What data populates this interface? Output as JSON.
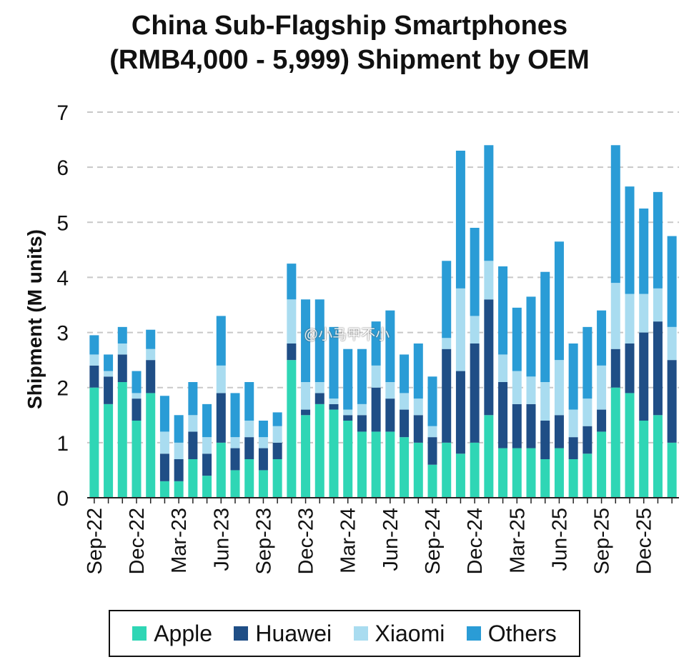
{
  "chart_data": {
    "type": "bar",
    "stacked": true,
    "title": "China Sub-Flagship Smartphones",
    "subtitle": "(RMB4,000 - 5,999) Shipment by OEM",
    "ylabel": "Shipment (M units)",
    "xlabel": "",
    "ylim": [
      0,
      7
    ],
    "yticks": [
      0,
      1,
      2,
      3,
      4,
      5,
      6,
      7
    ],
    "grid": true,
    "legend_position": "bottom",
    "categories": [
      "Sep-22",
      "Oct-22",
      "Nov-22",
      "Dec-22",
      "Jan-23",
      "Feb-23",
      "Mar-23",
      "Apr-23",
      "May-23",
      "Jun-23",
      "Jul-23",
      "Aug-23",
      "Sep-23",
      "Oct-23",
      "Nov-23",
      "Dec-23",
      "Jan-24",
      "Feb-24",
      "Mar-24",
      "Apr-24",
      "May-24",
      "Jun-24",
      "Jul-24",
      "Aug-24",
      "Sep-24",
      "Oct-24",
      "Nov-24",
      "Dec-24",
      "Jan-25",
      "Feb-25",
      "Mar-25",
      "Apr-25",
      "May-25",
      "Jun-25",
      "Jul-25",
      "Aug-25",
      "Sep-25",
      "Oct-25",
      "Nov-25",
      "Dec-25",
      "Jan-26",
      "Feb-26"
    ],
    "tick_labels": [
      "Sep-22",
      "Dec-22",
      "Mar-23",
      "Jun-23",
      "Sep-23",
      "Dec-23",
      "Mar-24",
      "Jun-24",
      "Sep-24",
      "Dec-24",
      "Mar-25",
      "Jun-25",
      "Sep-25",
      "Dec-25"
    ],
    "series": [
      {
        "name": "Apple",
        "color": "#2fd6b5",
        "values": [
          2.0,
          1.7,
          2.1,
          1.4,
          1.9,
          0.3,
          0.3,
          0.7,
          0.4,
          1.0,
          0.5,
          0.7,
          0.5,
          0.7,
          2.5,
          1.5,
          1.7,
          1.6,
          1.4,
          1.2,
          1.2,
          1.2,
          1.1,
          1.0,
          0.6,
          1.0,
          0.8,
          1.0,
          1.5,
          0.9,
          0.9,
          0.9,
          0.7,
          0.9,
          0.7,
          0.8,
          1.2,
          2.0,
          1.9,
          1.4,
          1.5,
          1.0
        ]
      },
      {
        "name": "Huawei",
        "color": "#1f4e86",
        "values": [
          0.4,
          0.5,
          0.5,
          0.4,
          0.6,
          0.5,
          0.4,
          0.5,
          0.4,
          0.9,
          0.4,
          0.4,
          0.4,
          0.3,
          0.3,
          0.1,
          0.2,
          0.1,
          0.1,
          0.3,
          0.8,
          0.6,
          0.5,
          0.5,
          0.5,
          1.7,
          1.5,
          1.8,
          2.1,
          1.2,
          0.8,
          0.8,
          0.7,
          0.6,
          0.4,
          0.5,
          0.4,
          0.7,
          0.9,
          1.6,
          1.7,
          1.5
        ]
      },
      {
        "name": "Xiaomi",
        "color": "#a9dcf0",
        "values": [
          0.2,
          0.1,
          0.2,
          0.1,
          0.2,
          0.4,
          0.3,
          0.3,
          0.3,
          0.5,
          0.2,
          0.3,
          0.2,
          0.3,
          0.8,
          0.5,
          0.2,
          0.1,
          0.1,
          0.2,
          0.4,
          0.3,
          0.3,
          0.3,
          0.2,
          0.2,
          1.5,
          0.5,
          0.7,
          0.5,
          0.6,
          0.5,
          0.7,
          1.0,
          0.5,
          0.5,
          0.8,
          1.2,
          0.9,
          0.7,
          0.6,
          0.6
        ]
      },
      {
        "name": "Others",
        "color": "#2a9cd6",
        "values": [
          0.35,
          0.3,
          0.3,
          0.4,
          0.35,
          0.65,
          0.5,
          0.6,
          0.6,
          0.9,
          0.8,
          0.7,
          0.3,
          0.25,
          0.65,
          1.5,
          1.5,
          1.3,
          1.1,
          1.0,
          0.8,
          1.3,
          0.7,
          1.0,
          0.9,
          1.4,
          2.5,
          1.6,
          2.1,
          1.6,
          1.15,
          1.45,
          2.0,
          2.15,
          1.2,
          1.3,
          1.0,
          2.5,
          1.95,
          1.55,
          1.75,
          1.65
        ]
      }
    ]
  },
  "watermark": "@小马甲不小"
}
